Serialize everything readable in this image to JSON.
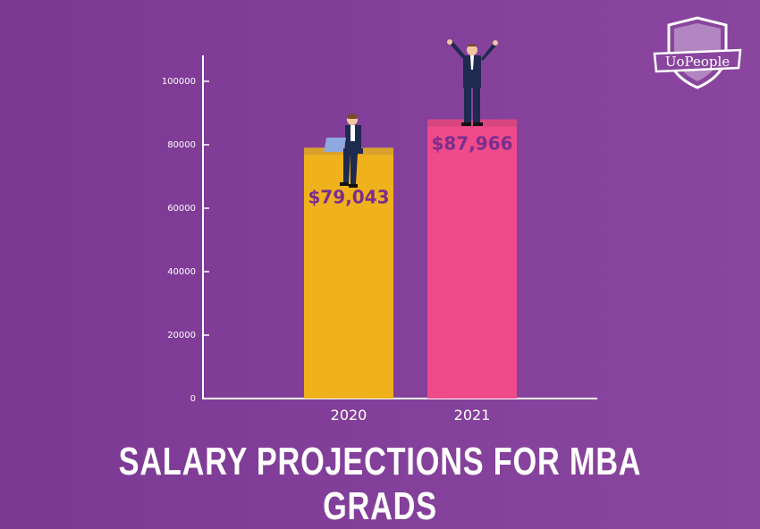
{
  "chart_data": {
    "type": "bar",
    "title": "SALARY PROJECTIONS FOR MBA GRADS",
    "categories": [
      "2020",
      "2021"
    ],
    "values": [
      79043,
      87966
    ],
    "data_labels": [
      "$79,043",
      "$87,966"
    ],
    "yticks": [
      0,
      20000,
      40000,
      60000,
      80000,
      100000
    ],
    "ylim": [
      0,
      108000
    ],
    "xlabel": "",
    "ylabel": "",
    "grid": false,
    "colors": [
      "#f0b21c",
      "#ef4a8a"
    ],
    "top_band_colors": [
      "#d9a22c",
      "#d84680"
    ],
    "label_color": "#7a2e8e",
    "background": "#833f9a"
  },
  "logo": {
    "text": "UoPeople"
  }
}
